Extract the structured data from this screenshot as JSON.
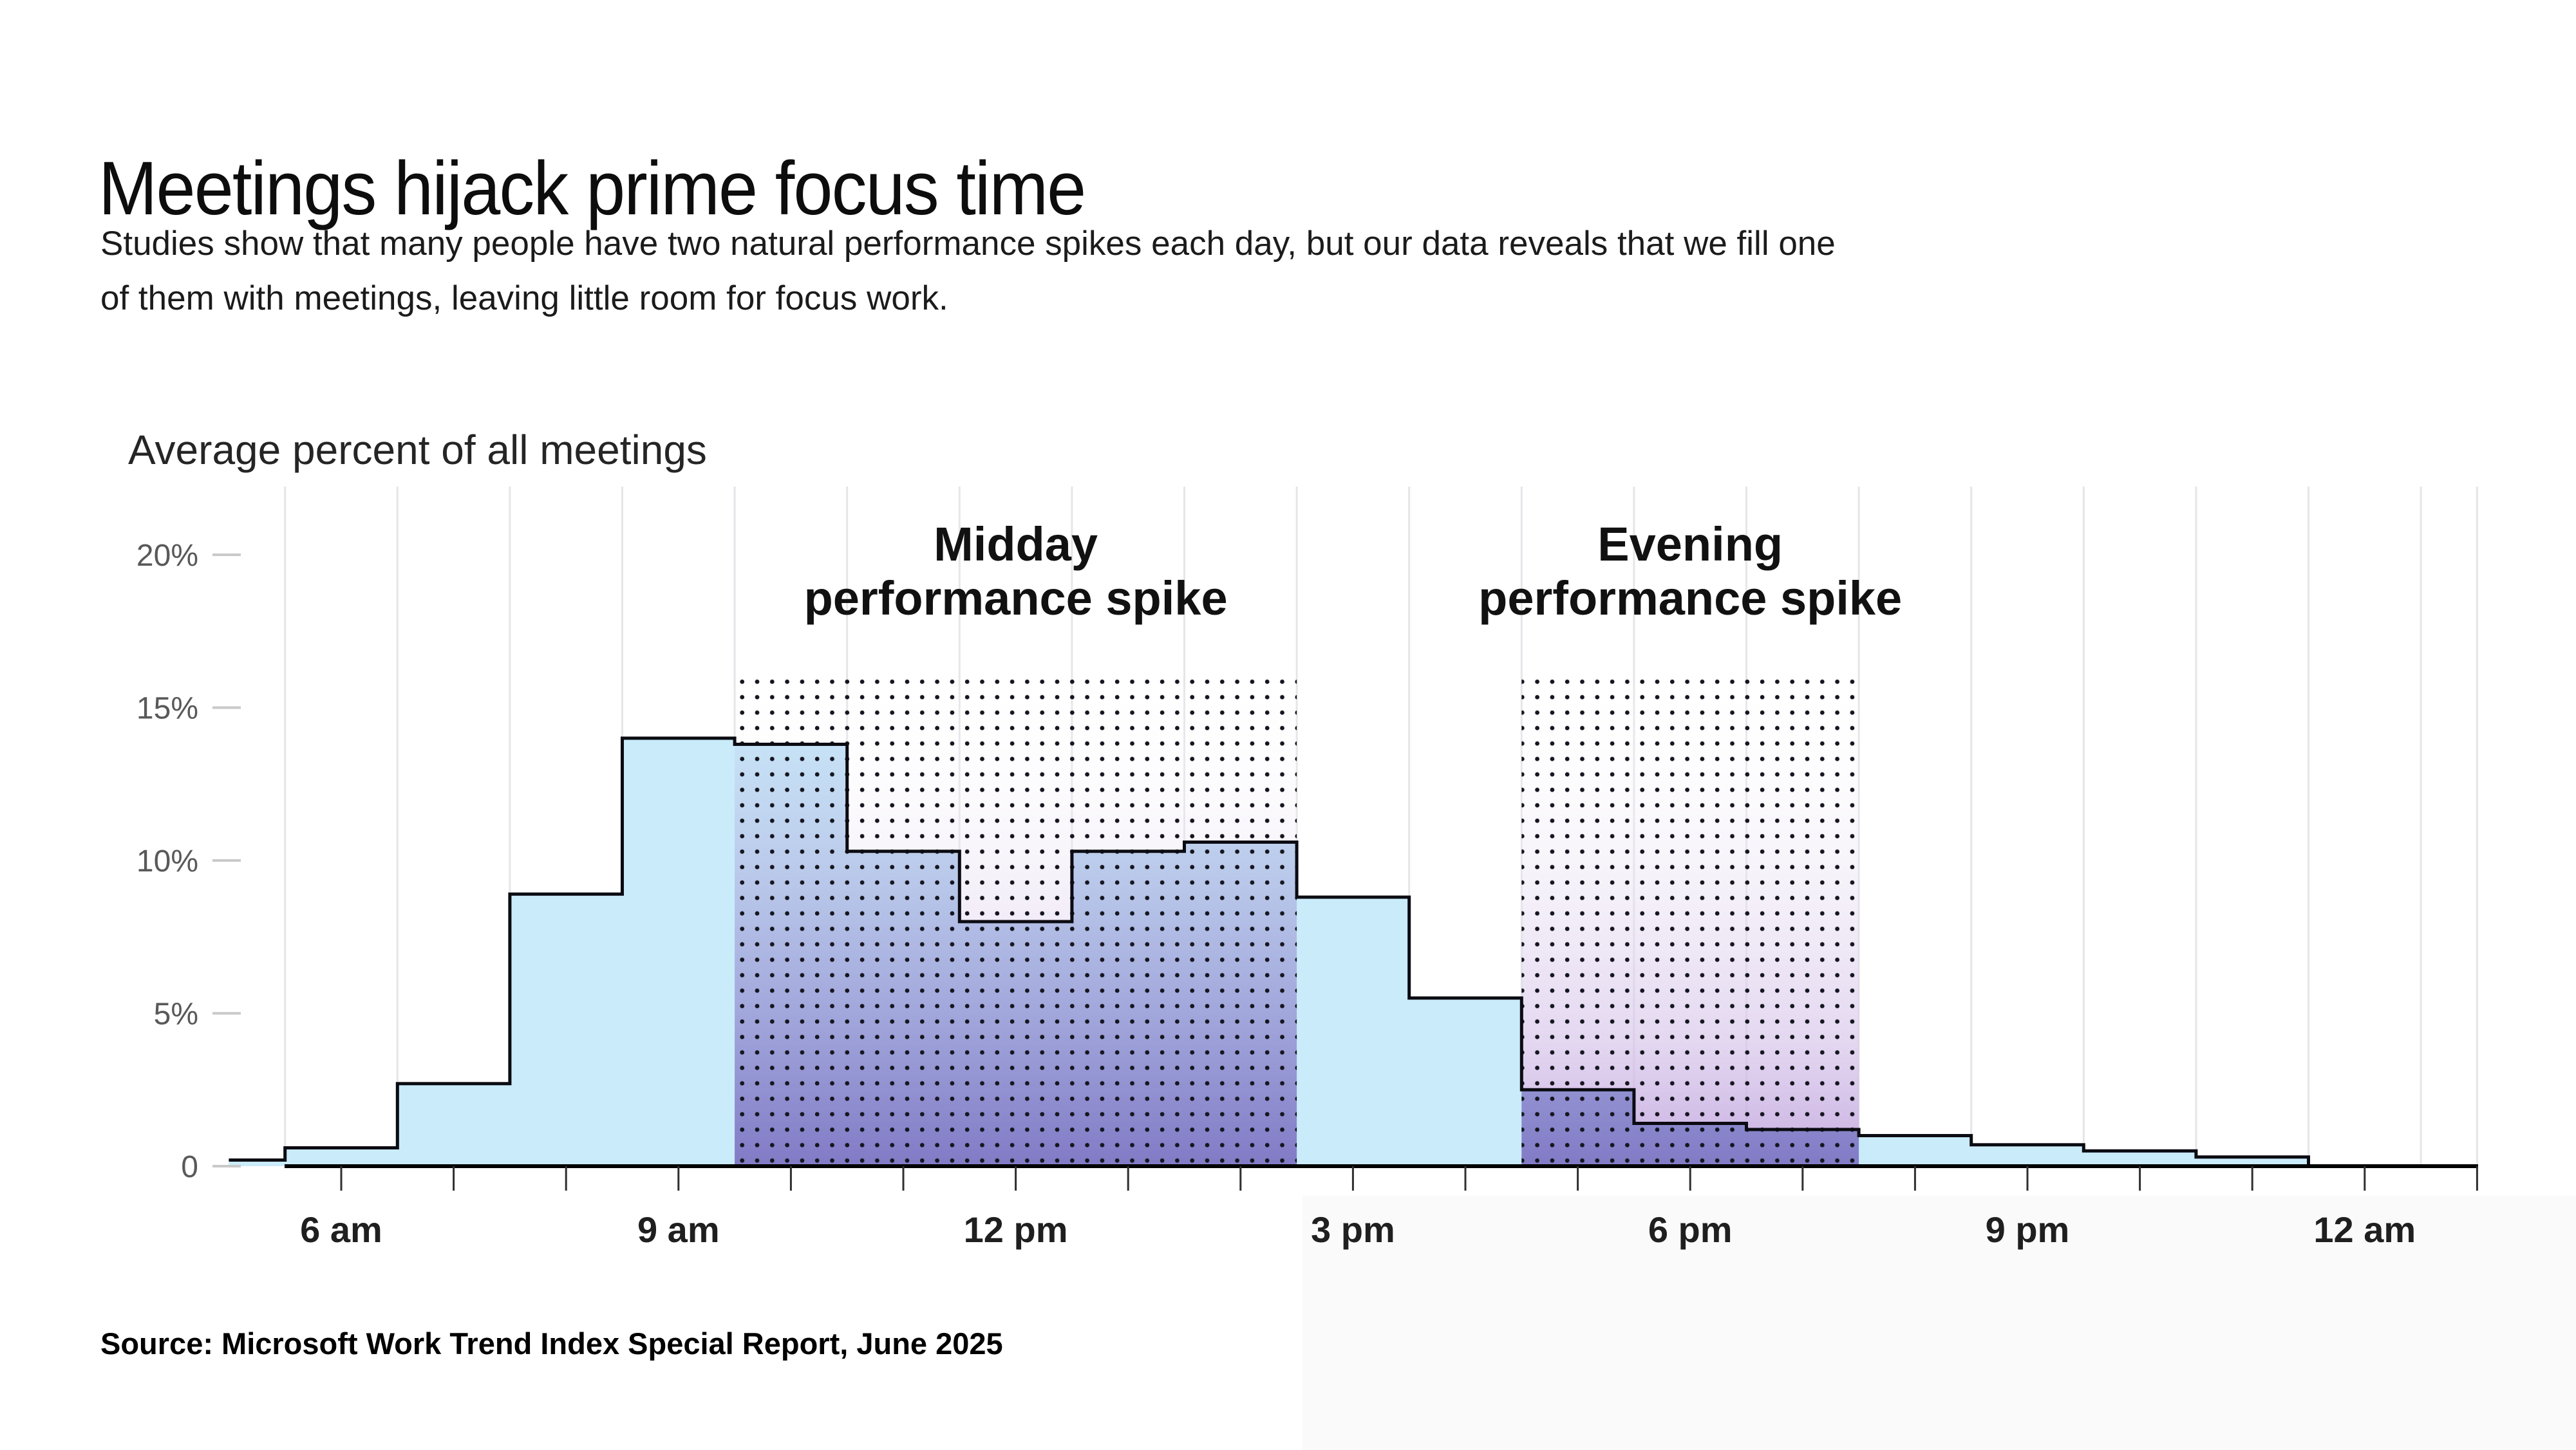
{
  "page": {
    "title": "Meetings hijack prime focus time",
    "subtitle_line1": "Studies show that many people have two natural performance spikes each day, but our data reveals that we fill one",
    "subtitle_line2": "of them with meetings, leaving little room for focus work.",
    "source": "Source: Microsoft Work Trend Index Special Report, June 2025"
  },
  "chart_data": {
    "type": "area",
    "step": true,
    "title": "",
    "ylabel": "Average percent of all meetings",
    "xlabel": "",
    "ylim": [
      0,
      22.2
    ],
    "xlim_hours": [
      4.5,
      25
    ],
    "grid": "vertical-half-hour-gridlines",
    "legend": null,
    "y_ticks": [
      {
        "value": 0,
        "label": "0"
      },
      {
        "value": 5,
        "label": "5%"
      },
      {
        "value": 10,
        "label": "10%"
      },
      {
        "value": 15,
        "label": "15%"
      },
      {
        "value": 20,
        "label": "20%"
      }
    ],
    "x_ticks": [
      {
        "hour": 6,
        "label": "6 am"
      },
      {
        "hour": 9,
        "label": "9 am"
      },
      {
        "hour": 12,
        "label": "12 pm"
      },
      {
        "hour": 15,
        "label": "3 pm"
      },
      {
        "hour": 18,
        "label": "6 pm"
      },
      {
        "hour": 21,
        "label": "9 pm"
      },
      {
        "hour": 24,
        "label": "12 am"
      }
    ],
    "series_name": "Average percent of all meetings by hour",
    "points": [
      {
        "hour": 5,
        "label": "5 am",
        "value": 0.2
      },
      {
        "hour": 6,
        "label": "6 am",
        "value": 0.6
      },
      {
        "hour": 7,
        "label": "7 am",
        "value": 2.7
      },
      {
        "hour": 8,
        "label": "8 am",
        "value": 8.9
      },
      {
        "hour": 9,
        "label": "9 am",
        "value": 14.0
      },
      {
        "hour": 10,
        "label": "10 am",
        "value": 13.8
      },
      {
        "hour": 11,
        "label": "11 am",
        "value": 10.3
      },
      {
        "hour": 12,
        "label": "12 pm",
        "value": 8.0
      },
      {
        "hour": 13,
        "label": "1 pm",
        "value": 10.3
      },
      {
        "hour": 14,
        "label": "2 pm",
        "value": 10.6
      },
      {
        "hour": 15,
        "label": "3 pm",
        "value": 8.8
      },
      {
        "hour": 16,
        "label": "4 pm",
        "value": 5.5
      },
      {
        "hour": 17,
        "label": "5 pm",
        "value": 2.5
      },
      {
        "hour": 18,
        "label": "6 pm",
        "value": 1.4
      },
      {
        "hour": 19,
        "label": "7 pm",
        "value": 1.2
      },
      {
        "hour": 20,
        "label": "8 pm",
        "value": 1.0
      },
      {
        "hour": 21,
        "label": "9 pm",
        "value": 0.7
      },
      {
        "hour": 22,
        "label": "10 pm",
        "value": 0.5
      },
      {
        "hour": 23,
        "label": "11 pm",
        "value": 0.3
      }
    ],
    "regions": [
      {
        "id": "midday",
        "label_line1": "Midday",
        "label_line2": "performance spike",
        "start_hour": 9.5,
        "end_hour": 14.5,
        "top_value": 16.1
      },
      {
        "id": "evening",
        "label_line1": "Evening",
        "label_line2": "performance spike",
        "start_hour": 16.5,
        "end_hour": 19.5,
        "top_value": 16.1
      }
    ],
    "colors": {
      "background": "#ffffff",
      "area_fill": "#c9ebfa",
      "step_line": "#0b0b12",
      "axis_line": "#000000",
      "gridline": "rgba(140,140,155,0.22)",
      "y_tick_dash": "#c9c9c9",
      "x_tick_mark": "#2f2f2f",
      "y_tick_label": "#595959",
      "x_tick_label": "#1f1f1f",
      "dot": "#15151f",
      "region_tint_mid": "rgba(234,226,243,0.42)",
      "region_tint_low": "rgba(213,194,233,0.66)",
      "region_tint_bottom": "rgba(192,162,221,0.90)",
      "area_tint_mid": "rgba(99,112,197,0.28)",
      "area_tint_bottom": "rgba(90,94,182,0.62)",
      "bottom_right_shade": "#fafafa"
    }
  }
}
